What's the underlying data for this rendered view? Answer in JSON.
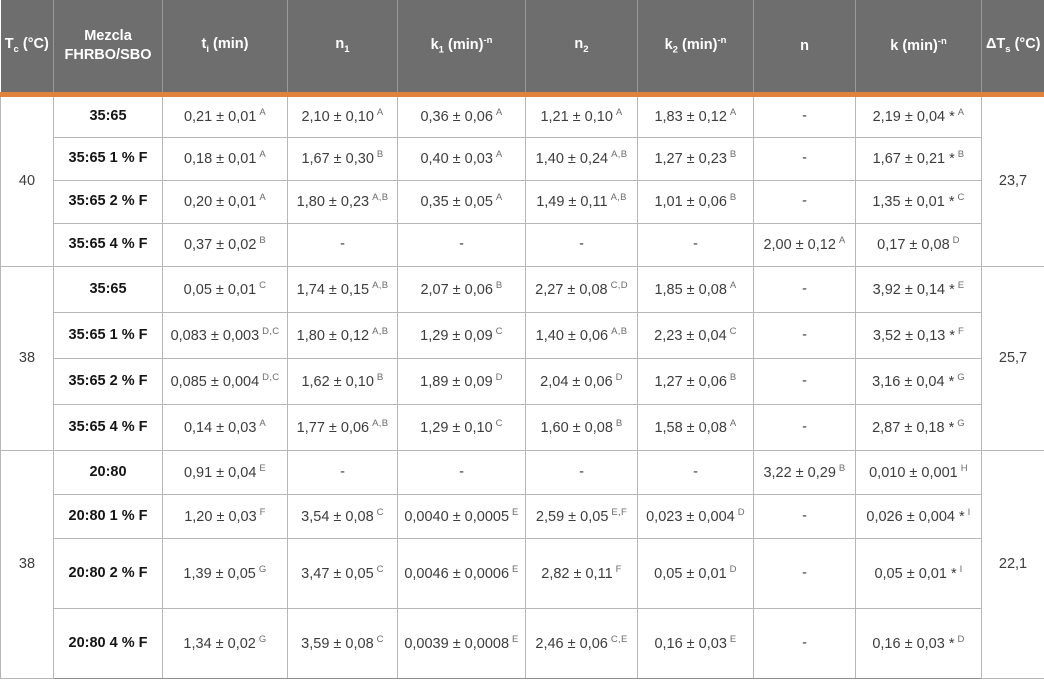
{
  "colors": {
    "header_background": "#6E6E6E",
    "accent_orange": "#E0813C",
    "grid_line": "#B7B7B7",
    "block_divider": "#8F8F8F",
    "header_text": "#FFFFFF",
    "body_text": "#3D3D3D"
  },
  "chart_data": {
    "type": "table",
    "columns": [
      {
        "pre": "T",
        "sub": "c",
        "post": " (°C)"
      },
      {
        "pre": "Mezcla FHRBO/SBO"
      },
      {
        "pre": "t",
        "sub": "i",
        "post": " (min)"
      },
      {
        "pre": "n",
        "sub": "1"
      },
      {
        "pre": "k",
        "sub": "1",
        "post": " (min)",
        "sup": "-n"
      },
      {
        "pre": "n",
        "sub": "2"
      },
      {
        "pre": "k",
        "sub": "2",
        "post": " (min)",
        "sup": "-n"
      },
      {
        "pre": "n"
      },
      {
        "pre": "k",
        "post": " (min)",
        "sup": "-n"
      },
      {
        "pre": "ΔT",
        "sub": "s",
        "post": " (°C)"
      }
    ],
    "blocks": [
      {
        "tc": "40",
        "dts": "23,7",
        "rows": [
          {
            "mix": "35:65",
            "cells": [
              {
                "v": "0,21 ± 0,01",
                "sup": "A"
              },
              {
                "v": "2,10 ± 0,10",
                "sup": "A"
              },
              {
                "v": "0,36 ± 0,06",
                "sup": "A"
              },
              {
                "v": "1,21 ± 0,10",
                "sup": "A"
              },
              {
                "v": "1,83 ± 0,12",
                "sup": "A"
              },
              {
                "v": "-",
                "sup": ""
              },
              {
                "v": "2,19 ± 0,04 *",
                "sup": "A"
              }
            ]
          },
          {
            "mix": "35:65 1 % F",
            "cells": [
              {
                "v": "0,18 ± 0,01",
                "sup": "A"
              },
              {
                "v": "1,67 ± 0,30",
                "sup": "B"
              },
              {
                "v": "0,40 ± 0,03",
                "sup": "A"
              },
              {
                "v": "1,40 ± 0,24",
                "sup": "A,B"
              },
              {
                "v": "1,27 ± 0,23",
                "sup": "B"
              },
              {
                "v": "-",
                "sup": ""
              },
              {
                "v": "1,67 ± 0,21 *",
                "sup": "B"
              }
            ]
          },
          {
            "mix": "35:65 2 % F",
            "cells": [
              {
                "v": "0,20 ± 0,01",
                "sup": "A"
              },
              {
                "v": "1,80 ± 0,23",
                "sup": "A,B"
              },
              {
                "v": "0,35 ± 0,05",
                "sup": "A"
              },
              {
                "v": "1,49 ± 0,11",
                "sup": "A,B"
              },
              {
                "v": "1,01 ± 0,06",
                "sup": "B"
              },
              {
                "v": "-",
                "sup": ""
              },
              {
                "v": "1,35 ± 0,01 *",
                "sup": "C"
              }
            ]
          },
          {
            "mix": "35:65 4 % F",
            "cells": [
              {
                "v": "0,37 ± 0,02",
                "sup": "B"
              },
              {
                "v": "-",
                "sup": ""
              },
              {
                "v": "-",
                "sup": ""
              },
              {
                "v": "-",
                "sup": ""
              },
              {
                "v": "-",
                "sup": ""
              },
              {
                "v": "2,00 ± 0,12",
                "sup": "A"
              },
              {
                "v": "0,17 ± 0,08",
                "sup": "D"
              }
            ]
          }
        ]
      },
      {
        "tc": "38",
        "dts": "25,7",
        "rows": [
          {
            "mix": "35:65",
            "cells": [
              {
                "v": "0,05 ± 0,01",
                "sup": "C"
              },
              {
                "v": "1,74 ± 0,15",
                "sup": "A,B"
              },
              {
                "v": "2,07 ± 0,06",
                "sup": "B"
              },
              {
                "v": "2,27 ± 0,08",
                "sup": "C,D"
              },
              {
                "v": "1,85 ± 0,08",
                "sup": "A"
              },
              {
                "v": "-",
                "sup": ""
              },
              {
                "v": "3,92 ± 0,14 *",
                "sup": "E"
              }
            ]
          },
          {
            "mix": "35:65 1 % F",
            "cells": [
              {
                "v": "0,083 ± 0,003",
                "sup": "D,C"
              },
              {
                "v": "1,80 ± 0,12",
                "sup": "A,B"
              },
              {
                "v": "1,29 ± 0,09",
                "sup": "C"
              },
              {
                "v": "1,40 ± 0,06",
                "sup": "A,B"
              },
              {
                "v": "2,23 ± 0,04",
                "sup": "C"
              },
              {
                "v": "-",
                "sup": ""
              },
              {
                "v": "3,52 ± 0,13 *",
                "sup": "F"
              }
            ]
          },
          {
            "mix": "35:65 2 % F",
            "cells": [
              {
                "v": "0,085 ± 0,004",
                "sup": "D,C"
              },
              {
                "v": "1,62 ± 0,10",
                "sup": "B"
              },
              {
                "v": "1,89 ± 0,09",
                "sup": "D"
              },
              {
                "v": "2,04 ± 0,06",
                "sup": "D"
              },
              {
                "v": "1,27 ± 0,06",
                "sup": "B"
              },
              {
                "v": "-",
                "sup": ""
              },
              {
                "v": "3,16 ± 0,04 *",
                "sup": "G"
              }
            ]
          },
          {
            "mix": "35:65 4 % F",
            "cells": [
              {
                "v": "0,14 ± 0,03",
                "sup": "A"
              },
              {
                "v": "1,77 ± 0,06",
                "sup": "A,B"
              },
              {
                "v": "1,29 ± 0,10",
                "sup": "C"
              },
              {
                "v": "1,60 ± 0,08",
                "sup": "B"
              },
              {
                "v": "1,58 ± 0,08",
                "sup": "A"
              },
              {
                "v": "-",
                "sup": ""
              },
              {
                "v": "2,87 ± 0,18 *",
                "sup": "G"
              }
            ]
          }
        ]
      },
      {
        "tc": "38",
        "dts": "22,1",
        "rows": [
          {
            "mix": "20:80",
            "cells": [
              {
                "v": "0,91 ± 0,04",
                "sup": "E"
              },
              {
                "v": "-",
                "sup": ""
              },
              {
                "v": "-",
                "sup": ""
              },
              {
                "v": "-",
                "sup": ""
              },
              {
                "v": "-",
                "sup": ""
              },
              {
                "v": "3,22 ± 0,29",
                "sup": "B"
              },
              {
                "v": "0,010 ± 0,001",
                "sup": "H"
              }
            ]
          },
          {
            "mix": "20:80 1 % F",
            "cells": [
              {
                "v": "1,20 ± 0,03",
                "sup": "F"
              },
              {
                "v": "3,54 ± 0,08",
                "sup": "C"
              },
              {
                "v": "0,0040 ± 0,0005",
                "sup": "E"
              },
              {
                "v": "2,59 ± 0,05",
                "sup": "E,F"
              },
              {
                "v": "0,023 ± 0,004",
                "sup": "D"
              },
              {
                "v": "-",
                "sup": ""
              },
              {
                "v": "0,026 ± 0,004 *",
                "sup": "I"
              }
            ]
          },
          {
            "mix": "20:80 2 % F",
            "cells": [
              {
                "v": "1,39 ± 0,05",
                "sup": "G"
              },
              {
                "v": "3,47 ± 0,05",
                "sup": "C"
              },
              {
                "v": "0,0046 ± 0,0006",
                "sup": "E"
              },
              {
                "v": "2,82 ± 0,11",
                "sup": "F"
              },
              {
                "v": "0,05 ± 0,01",
                "sup": "D"
              },
              {
                "v": "-",
                "sup": ""
              },
              {
                "v": "0,05 ± 0,01 *",
                "sup": "I"
              }
            ]
          },
          {
            "mix": "20:80 4 % F",
            "cells": [
              {
                "v": "1,34 ± 0,02",
                "sup": "G"
              },
              {
                "v": "3,59 ± 0,08",
                "sup": "C"
              },
              {
                "v": "0,0039 ± 0,0008",
                "sup": "E"
              },
              {
                "v": "2,46 ± 0,06",
                "sup": "C,E"
              },
              {
                "v": "0,16 ± 0,03",
                "sup": "E"
              },
              {
                "v": "-",
                "sup": ""
              },
              {
                "v": "0,16 ± 0,03 *",
                "sup": "D"
              }
            ]
          }
        ]
      }
    ]
  }
}
